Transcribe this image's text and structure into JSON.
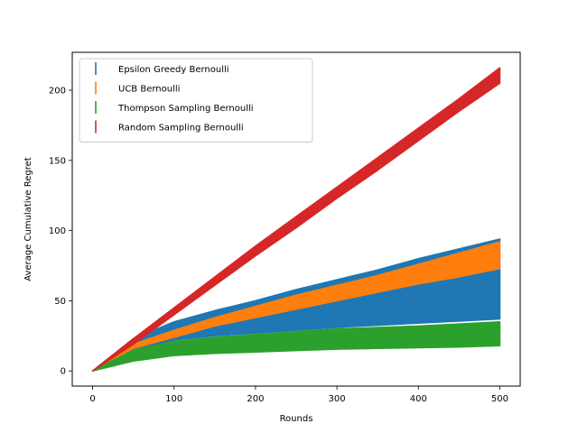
{
  "chart_data": {
    "type": "area",
    "title": "",
    "xlabel": "Rounds",
    "ylabel": "Average Cumulative Regret",
    "xlim": [
      -25,
      525
    ],
    "ylim": [
      -10.8,
      227
    ],
    "xticks": [
      0,
      100,
      200,
      300,
      400,
      500
    ],
    "yticks": [
      0,
      50,
      100,
      150,
      200
    ],
    "grid": false,
    "legend_position": "upper-left",
    "series": [
      {
        "name": "Epsilon Greedy Bernoulli",
        "color": "#1f77b4",
        "x": [
          0,
          50,
          100,
          150,
          200,
          250,
          300,
          350,
          400,
          450,
          500
        ],
        "lower": [
          0,
          15,
          22,
          25,
          27,
          29,
          31,
          32.5,
          34,
          35.5,
          37
        ],
        "upper": [
          0,
          23,
          35,
          43,
          50,
          58,
          65,
          72,
          80,
          87,
          94
        ]
      },
      {
        "name": "UCB Bernoulli",
        "color": "#ff7f0e",
        "x": [
          0,
          50,
          100,
          150,
          200,
          250,
          300,
          350,
          400,
          450,
          500
        ],
        "lower": [
          0,
          16,
          24,
          32,
          38,
          44,
          50,
          56,
          62,
          67,
          73
        ],
        "upper": [
          0,
          19,
          29,
          38,
          46,
          54,
          61,
          68,
          76,
          84,
          92
        ]
      },
      {
        "name": "Thompson Sampling Bernoulli",
        "color": "#2ca02c",
        "x": [
          0,
          50,
          100,
          150,
          200,
          250,
          300,
          350,
          400,
          450,
          500
        ],
        "lower": [
          0,
          7,
          11,
          12.5,
          13.5,
          14.5,
          15.5,
          16,
          16.5,
          17,
          18
        ],
        "upper": [
          0,
          15,
          21,
          24,
          26,
          28,
          30,
          31,
          32,
          33.5,
          35
        ]
      },
      {
        "name": "Random Sampling Bernoulli",
        "color": "#d62728",
        "x": [
          0,
          50,
          100,
          150,
          200,
          250,
          300,
          350,
          400,
          450,
          500
        ],
        "lower": [
          0,
          19,
          40,
          61,
          82,
          102,
          123,
          143,
          164,
          185,
          205
        ],
        "upper": [
          0,
          23,
          45,
          67,
          89,
          110,
          131,
          152,
          173,
          194,
          216
        ]
      }
    ]
  }
}
